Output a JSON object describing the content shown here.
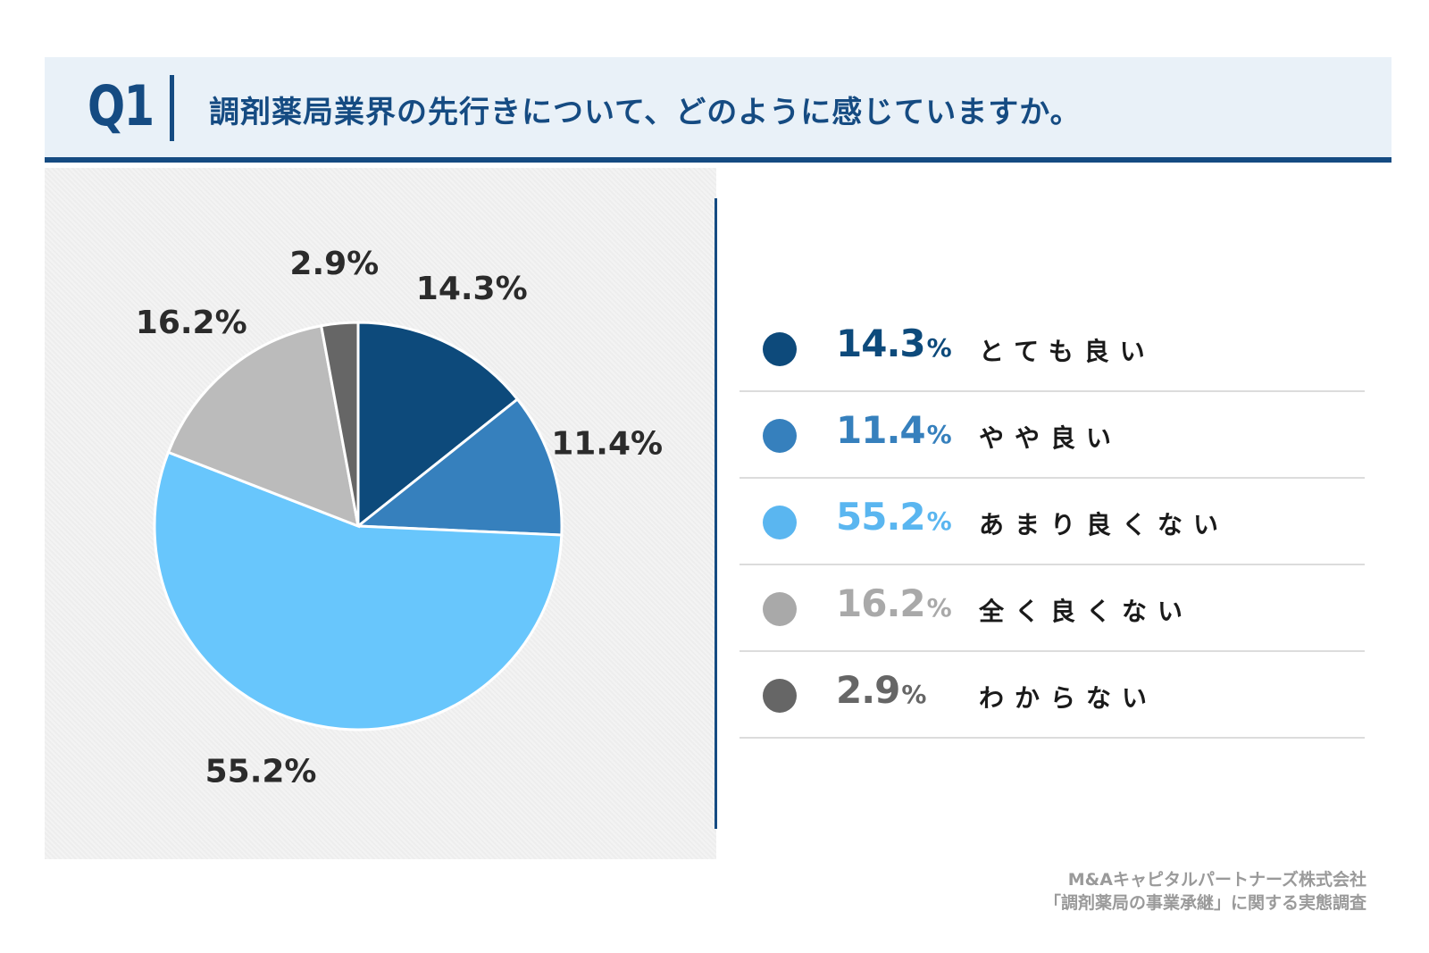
{
  "header": {
    "question_number": "Q1",
    "question_text": "調剤薬局業界の先行きについて、どのように感じていますか。"
  },
  "colors": {
    "header_bg": "#e9f1f8",
    "accent": "#154b82"
  },
  "chart_data": {
    "type": "pie",
    "title": "調剤薬局業界の先行きについて、どのように感じていますか。",
    "start": "12 o'clock, clockwise",
    "slices": [
      {
        "label": "とても良い",
        "value": 14.3,
        "display": "14.3%",
        "color": "#0d4a7b"
      },
      {
        "label": "やや良い",
        "value": 11.4,
        "display": "11.4%",
        "color": "#3680bd"
      },
      {
        "label": "あまり良くない",
        "value": 55.2,
        "display": "55.2%",
        "color": "#68c6fc"
      },
      {
        "label": "全く良くない",
        "value": 16.2,
        "display": "16.2%",
        "color": "#bbbbbb"
      },
      {
        "label": "わからない",
        "value": 2.9,
        "display": "2.9%",
        "color": "#666666"
      }
    ]
  },
  "legend": [
    {
      "value": "14.3",
      "unit": "%",
      "label": "とても良い",
      "color": "#0d4a7b",
      "text_color": "#0d4a7b"
    },
    {
      "value": "11.4",
      "unit": "%",
      "label": "やや良い",
      "color": "#3680bd",
      "text_color": "#3680bd"
    },
    {
      "value": "55.2",
      "unit": "%",
      "label": "あまり良くない",
      "color": "#5ab6f0",
      "text_color": "#5ab6f0"
    },
    {
      "value": "16.2",
      "unit": "%",
      "label": "全く良くない",
      "color": "#a9a9a9",
      "text_color": "#a9a9a9"
    },
    {
      "value": "2.9",
      "unit": "%",
      "label": "わからない",
      "color": "#666666",
      "text_color": "#666666"
    }
  ],
  "source": {
    "line1": "M&Aキャピタルパートナーズ株式会社",
    "line2": "「調剤薬局の事業承継」に関する実態調査"
  }
}
